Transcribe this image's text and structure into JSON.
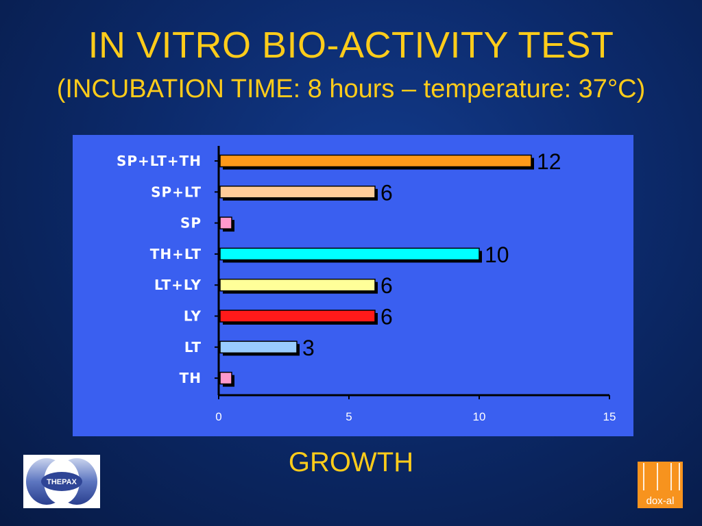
{
  "slide": {
    "title": "IN VITRO BIO-ACTIVITY TEST",
    "subtitle": "(INCUBATION TIME: 8 hours – temperature: 37°C)",
    "x_axis_title": "GROWTH"
  },
  "chart_data": {
    "type": "bar",
    "orientation": "horizontal",
    "categories": [
      "SP+LT+TH",
      "SP+LT",
      "SP",
      "TH+LT",
      "LT+LY",
      "LY",
      "LT",
      "TH"
    ],
    "values": [
      12,
      6,
      0.5,
      10,
      6,
      6,
      3,
      0.5
    ],
    "data_labels": [
      "12",
      "6",
      "",
      "10",
      "6",
      "6",
      "3",
      ""
    ],
    "bar_colors": [
      "#ff9a1a",
      "#ffcc99",
      "#ff99cc",
      "#00ffff",
      "#ffff99",
      "#ff1a1a",
      "#99ccff",
      "#ff99cc"
    ],
    "xticks": [
      "0",
      "5",
      "10",
      "15"
    ],
    "xlim": [
      0,
      15
    ],
    "xlabel": "GROWTH",
    "grid": false,
    "panel_color": "#3a5ff0",
    "category_label_color": "#ffffff",
    "value_label_color": "#000000"
  },
  "logos": {
    "left_text": "THEPAX",
    "right_text": "dox-al"
  }
}
